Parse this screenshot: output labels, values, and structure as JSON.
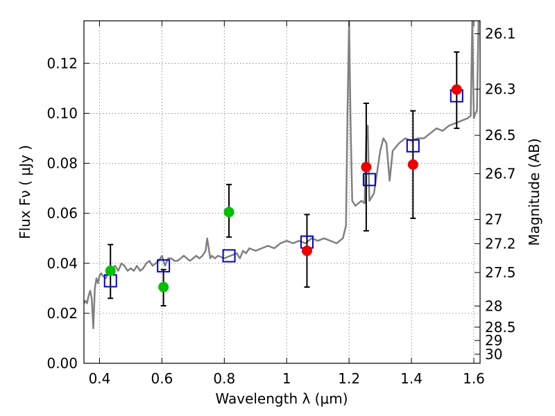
{
  "chart_data": {
    "type": "scatter",
    "xlabel": "Wavelength  λ (μm)",
    "ylabel": "Flux  Fν  ( μJy )",
    "y2label": "Magnitude (AB)",
    "xlim": [
      0.35,
      1.62
    ],
    "ylim": [
      0.0,
      0.137
    ],
    "grid": true,
    "x_ticks": [
      0.4,
      0.6,
      0.8,
      1.0,
      1.2,
      1.4,
      1.6
    ],
    "x_tick_labels": [
      "0.4",
      "0.6",
      "0.8",
      "1",
      "1.2",
      "1.4",
      "1.6"
    ],
    "y_ticks": [
      0.0,
      0.02,
      0.04,
      0.06,
      0.08,
      0.1,
      0.12
    ],
    "y_tick_labels": [
      "0.00",
      "0.02",
      "0.04",
      "0.06",
      "0.08",
      "0.10",
      "0.12"
    ],
    "y2_ticks": [
      {
        "label": "26.1",
        "mag": 26.1
      },
      {
        "label": "26.3",
        "mag": 26.3
      },
      {
        "label": "26.5",
        "mag": 26.5
      },
      {
        "label": "26.7",
        "mag": 26.7
      },
      {
        "label": "27",
        "mag": 27.0
      },
      {
        "label": "27.2",
        "mag": 27.2
      },
      {
        "label": "27.5",
        "mag": 27.5
      },
      {
        "label": "28",
        "mag": 28.0
      },
      {
        "label": "28.5",
        "mag": 28.5
      },
      {
        "label": "29",
        "mag": 29.0
      },
      {
        "label": "30",
        "mag": 30.0
      }
    ],
    "series": [
      {
        "kind": "line",
        "color": "#808080",
        "x": [
          0.35,
          0.355,
          0.36,
          0.365,
          0.37,
          0.375,
          0.38,
          0.385,
          0.39,
          0.395,
          0.4,
          0.405,
          0.41,
          0.42,
          0.43,
          0.44,
          0.45,
          0.46,
          0.47,
          0.48,
          0.49,
          0.5,
          0.51,
          0.52,
          0.53,
          0.54,
          0.55,
          0.56,
          0.57,
          0.58,
          0.59,
          0.6,
          0.61,
          0.62,
          0.63,
          0.64,
          0.65,
          0.66,
          0.67,
          0.68,
          0.69,
          0.7,
          0.71,
          0.72,
          0.73,
          0.74,
          0.745,
          0.75,
          0.755,
          0.76,
          0.77,
          0.78,
          0.8,
          0.82,
          0.84,
          0.85,
          0.86,
          0.87,
          0.88,
          0.9,
          0.92,
          0.94,
          0.96,
          0.98,
          1.0,
          1.02,
          1.04,
          1.06,
          1.08,
          1.1,
          1.12,
          1.14,
          1.16,
          1.18,
          1.19,
          1.195,
          1.2,
          1.205,
          1.21,
          1.22,
          1.24,
          1.25,
          1.255,
          1.26,
          1.265,
          1.28,
          1.3,
          1.31,
          1.32,
          1.33,
          1.34,
          1.36,
          1.38,
          1.4,
          1.42,
          1.44,
          1.46,
          1.48,
          1.5,
          1.52,
          1.54,
          1.56,
          1.58,
          1.59,
          1.595,
          1.6,
          1.605,
          1.61,
          1.615,
          1.62
        ],
        "values": [
          0.024,
          0.025,
          0.024,
          0.027,
          0.029,
          0.026,
          0.014,
          0.03,
          0.034,
          0.032,
          0.035,
          0.036,
          0.035,
          0.034,
          0.037,
          0.038,
          0.039,
          0.037,
          0.04,
          0.039,
          0.037,
          0.038,
          0.037,
          0.039,
          0.037,
          0.038,
          0.04,
          0.041,
          0.039,
          0.04,
          0.041,
          0.043,
          0.039,
          0.042,
          0.042,
          0.041,
          0.041,
          0.042,
          0.043,
          0.042,
          0.041,
          0.042,
          0.043,
          0.042,
          0.043,
          0.045,
          0.05,
          0.046,
          0.042,
          0.043,
          0.042,
          0.043,
          0.042,
          0.043,
          0.044,
          0.042,
          0.045,
          0.044,
          0.046,
          0.045,
          0.046,
          0.047,
          0.046,
          0.048,
          0.049,
          0.048,
          0.049,
          0.048,
          0.05,
          0.049,
          0.05,
          0.049,
          0.048,
          0.05,
          0.055,
          0.1,
          0.137,
          0.095,
          0.065,
          0.063,
          0.065,
          0.064,
          0.09,
          0.095,
          0.065,
          0.068,
          0.085,
          0.09,
          0.088,
          0.073,
          0.085,
          0.088,
          0.09,
          0.089,
          0.09,
          0.09,
          0.092,
          0.094,
          0.093,
          0.095,
          0.096,
          0.097,
          0.098,
          0.099,
          0.137,
          0.098,
          0.1,
          0.101,
          0.137,
          0.137
        ]
      },
      {
        "kind": "square",
        "color": "#0000cc",
        "x": [
          0.435,
          0.605,
          0.815,
          1.065,
          1.265,
          1.405,
          1.545
        ],
        "values": [
          0.033,
          0.039,
          0.043,
          0.0485,
          0.0735,
          0.087,
          0.107
        ]
      },
      {
        "kind": "circle",
        "color": "#00c000",
        "x": [
          0.435,
          0.605,
          0.815
        ],
        "values": [
          0.037,
          0.0305,
          0.0605
        ]
      },
      {
        "kind": "circle",
        "color": "#ee0000",
        "x": [
          1.065,
          1.255,
          1.405,
          1.545
        ],
        "values": [
          0.045,
          0.0785,
          0.0795,
          0.1095
        ]
      },
      {
        "kind": "errorbar",
        "color": "#000000",
        "x": [
          0.435,
          0.605,
          0.815,
          1.065,
          1.255,
          1.405,
          1.545
        ],
        "low": [
          0.026,
          0.023,
          0.0505,
          0.0305,
          0.053,
          0.058,
          0.094
        ],
        "high": [
          0.0475,
          0.0375,
          0.0715,
          0.0595,
          0.104,
          0.101,
          0.1245
        ]
      }
    ]
  }
}
